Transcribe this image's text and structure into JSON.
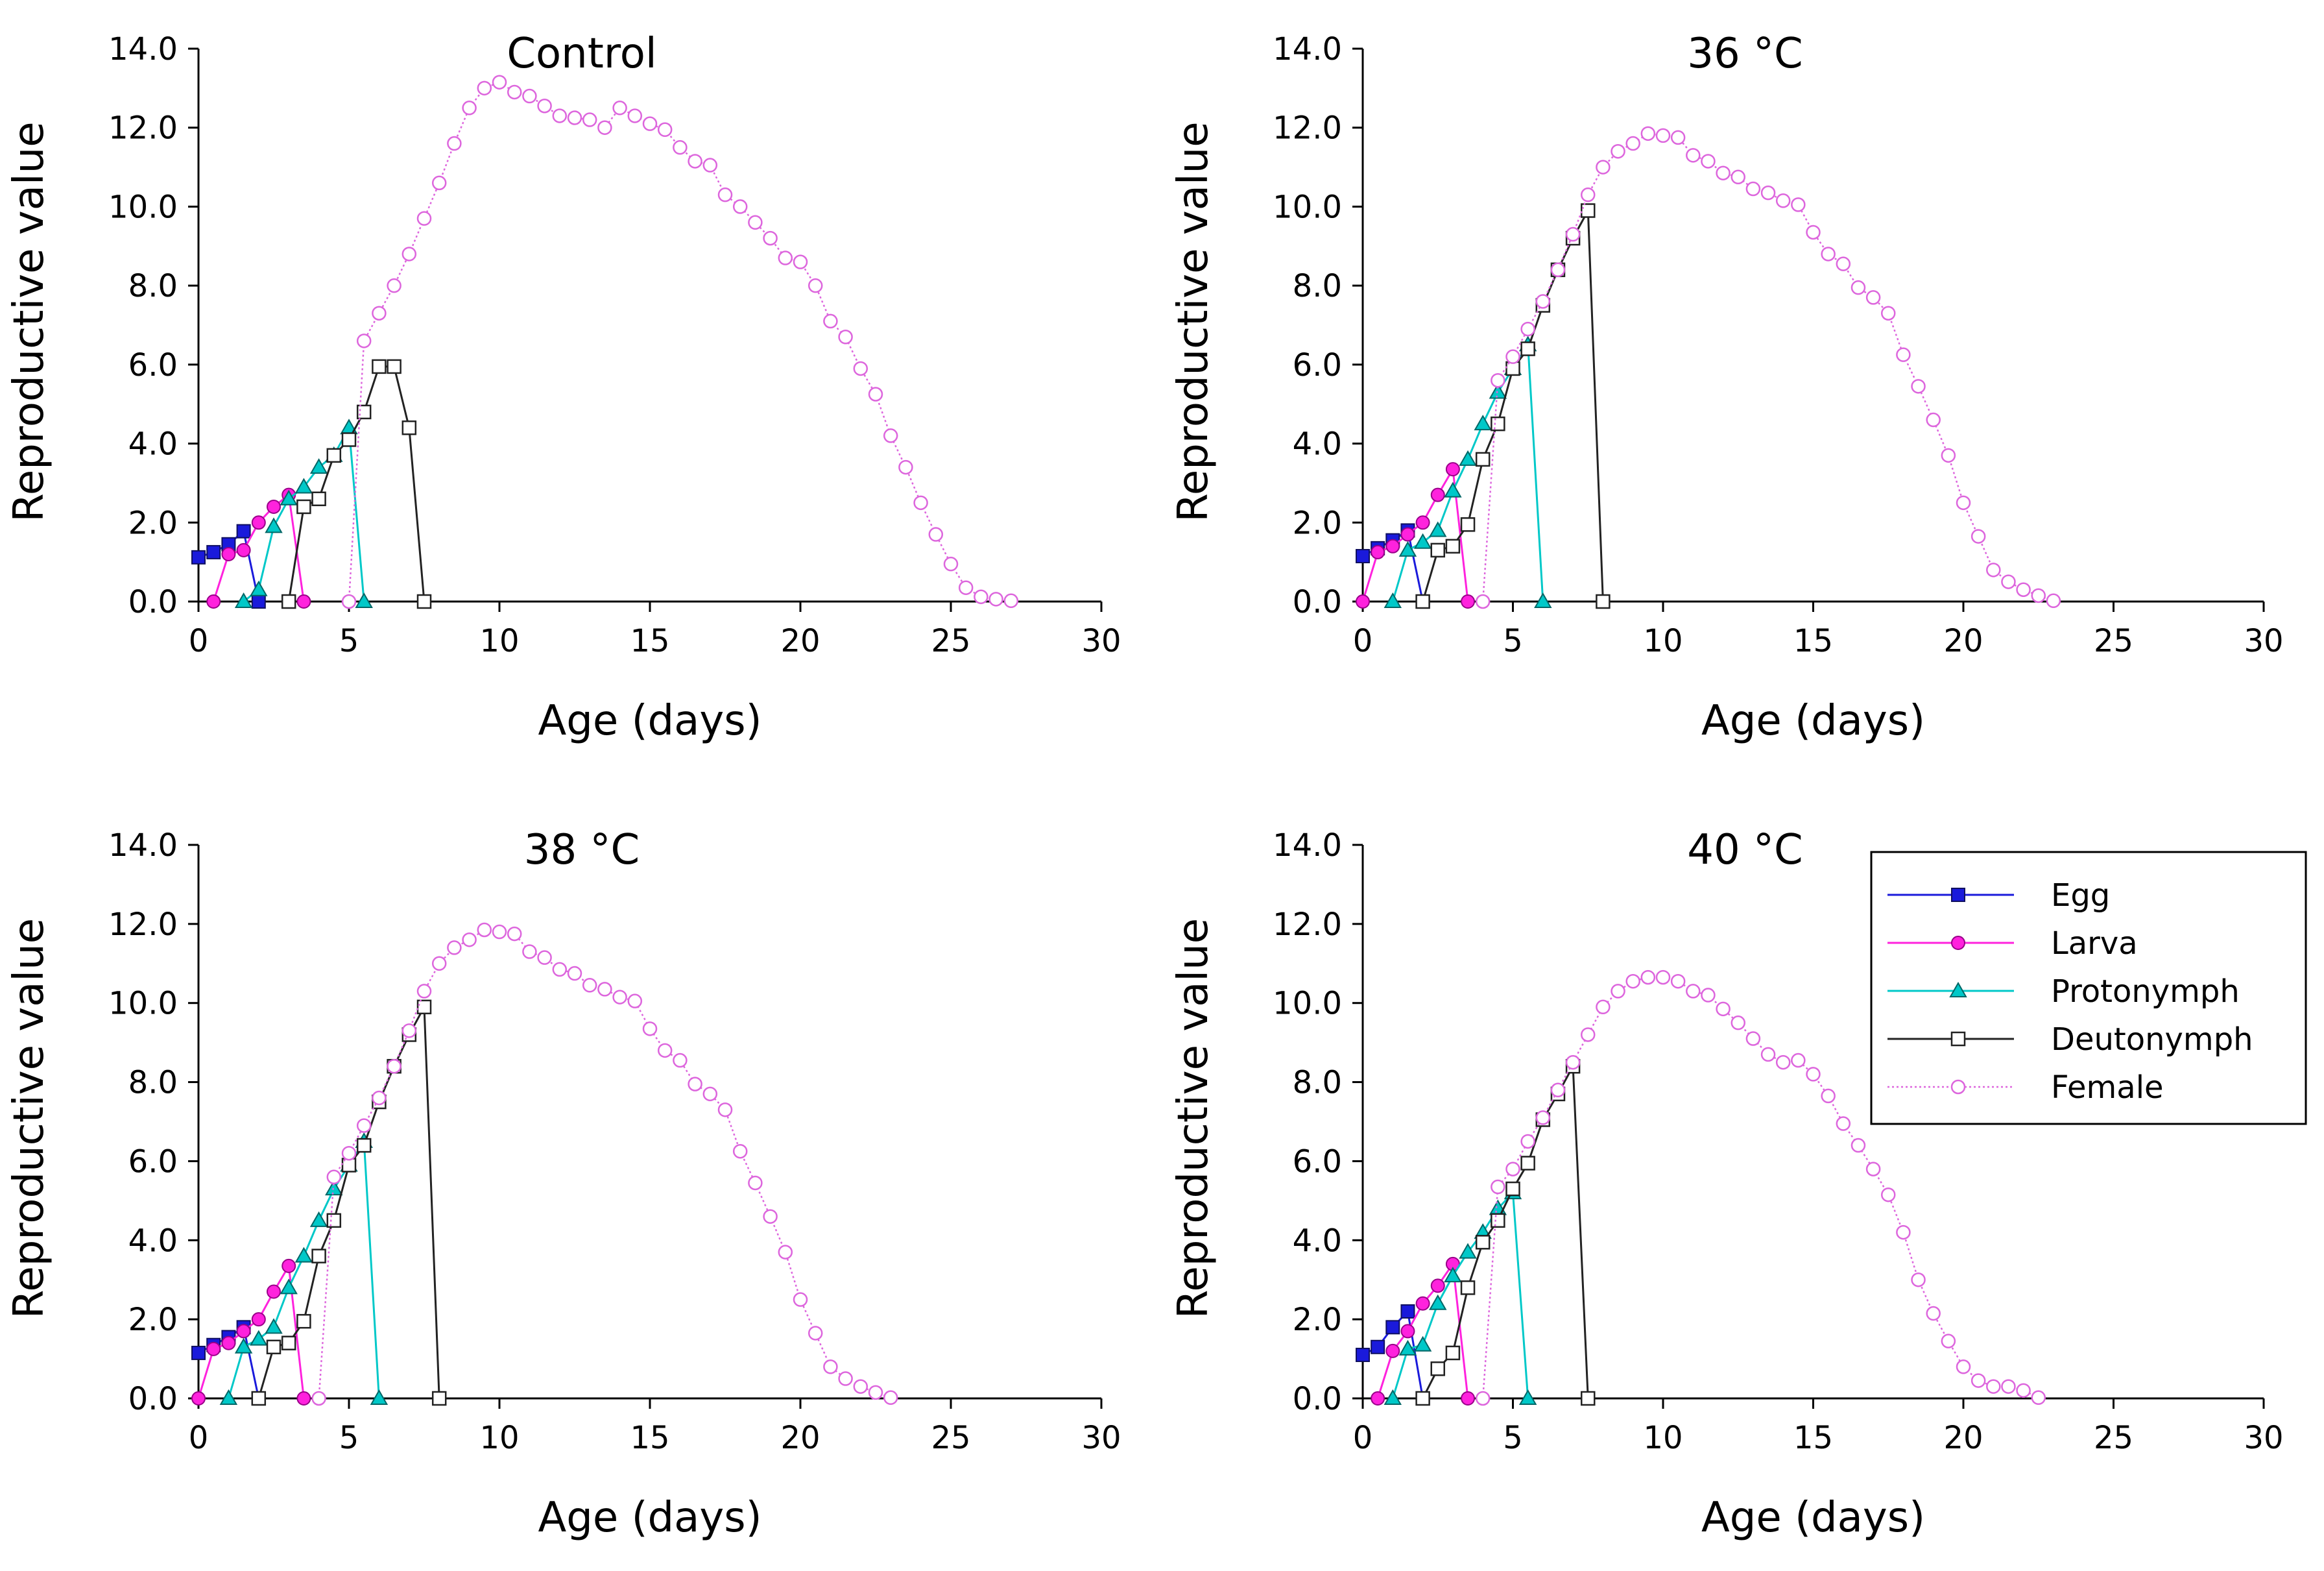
{
  "figure": {
    "colors": {
      "Egg": "#1a1adb",
      "Larva": "#ff22dd",
      "Protonymph": "#00c8c8",
      "Deutonymph": "#222222",
      "Female": "#dd66dd"
    },
    "legend": {
      "entries": [
        "Egg",
        "Larva",
        "Protonymph",
        "Deutonymph",
        "Female"
      ],
      "placement": "top-right of the 40 °C panel"
    }
  },
  "chart_data": [
    {
      "type": "line",
      "title": "Control",
      "xlabel": "Age (days)",
      "ylabel": "Reproductive value",
      "xlim": [
        0,
        30
      ],
      "ylim": [
        0,
        14
      ],
      "xticks": [
        "0",
        "5",
        "10",
        "15",
        "20",
        "25",
        "30"
      ],
      "yticks": [
        "0.0",
        "2.0",
        "4.0",
        "6.0",
        "8.0",
        "10.0",
        "12.0",
        "14.0"
      ],
      "series": [
        {
          "name": "Egg",
          "marker": "square-filled",
          "x": [
            0,
            0.5,
            1,
            1.5,
            2
          ],
          "y": [
            1.12,
            1.25,
            1.45,
            1.78,
            0
          ]
        },
        {
          "name": "Larva",
          "marker": "circle-filled",
          "x": [
            0.5,
            1,
            1.5,
            2,
            2.5,
            3,
            3.5
          ],
          "y": [
            0,
            1.2,
            1.3,
            2.0,
            2.4,
            2.7,
            0
          ]
        },
        {
          "name": "Protonymph",
          "marker": "triangle-filled",
          "x": [
            1.5,
            2,
            2.5,
            3,
            3.5,
            4,
            4.5,
            5,
            5.5
          ],
          "y": [
            0,
            0.3,
            1.9,
            2.6,
            2.9,
            3.4,
            3.7,
            4.4,
            0
          ]
        },
        {
          "name": "Deutonymph",
          "marker": "square-open",
          "x": [
            3,
            3.5,
            4,
            4.5,
            5,
            5.5,
            6,
            6.5,
            7,
            7.5
          ],
          "y": [
            0,
            2.4,
            2.6,
            3.7,
            4.1,
            4.8,
            5.95,
            5.95,
            4.4,
            0
          ]
        },
        {
          "name": "Female",
          "marker": "circle-open",
          "x": [
            5,
            5.5,
            6,
            6.5,
            7,
            7.5,
            8,
            8.5,
            9,
            9.5,
            10,
            10.5,
            11,
            11.5,
            12,
            12.5,
            13,
            13.5,
            14,
            14.5,
            15,
            15.5,
            16,
            16.5,
            17,
            17.5,
            18,
            18.5,
            19,
            19.5,
            20,
            20.5,
            21,
            21.5,
            22,
            22.5,
            23,
            23.5,
            24,
            24.5,
            25,
            25.5,
            26,
            26.5,
            27
          ],
          "y": [
            0,
            6.6,
            7.3,
            8.0,
            8.8,
            9.7,
            10.6,
            11.6,
            12.5,
            13.0,
            13.15,
            12.9,
            12.8,
            12.55,
            12.3,
            12.25,
            12.2,
            12.0,
            12.5,
            12.3,
            12.1,
            11.95,
            11.5,
            11.15,
            11.05,
            10.3,
            10.0,
            9.6,
            9.2,
            8.7,
            8.6,
            8.0,
            7.1,
            6.7,
            5.9,
            5.25,
            4.2,
            3.4,
            2.5,
            1.7,
            0.95,
            0.35,
            0.12,
            0.06,
            0.02
          ]
        }
      ]
    },
    {
      "type": "line",
      "title": "36 °C",
      "xlabel": "Age (days)",
      "ylabel": "Reproductive value",
      "xlim": [
        0,
        30
      ],
      "ylim": [
        0,
        14
      ],
      "xticks": [
        "0",
        "5",
        "10",
        "15",
        "20",
        "25",
        "30"
      ],
      "yticks": [
        "0.0",
        "2.0",
        "4.0",
        "6.0",
        "8.0",
        "10.0",
        "12.0",
        "14.0"
      ],
      "series": [
        {
          "name": "Egg",
          "marker": "square-filled",
          "x": [
            0,
            0.5,
            1,
            1.5,
            2
          ],
          "y": [
            1.15,
            1.35,
            1.55,
            1.8,
            0
          ]
        },
        {
          "name": "Larva",
          "marker": "circle-filled",
          "x": [
            0,
            0.5,
            1,
            1.5,
            2,
            2.5,
            3,
            3.5
          ],
          "y": [
            0,
            1.25,
            1.4,
            1.7,
            2.0,
            2.7,
            3.35,
            0
          ]
        },
        {
          "name": "Protonymph",
          "marker": "triangle-filled",
          "x": [
            1,
            1.5,
            2,
            2.5,
            3,
            3.5,
            4,
            4.5,
            5,
            5.5,
            6
          ],
          "y": [
            0,
            1.3,
            1.5,
            1.8,
            2.8,
            3.6,
            4.5,
            5.3,
            5.9,
            6.5,
            0
          ]
        },
        {
          "name": "Deutonymph",
          "marker": "square-open",
          "x": [
            2,
            2.5,
            3,
            3.5,
            4,
            4.5,
            5,
            5.5,
            6,
            6.5,
            7,
            7.5,
            8
          ],
          "y": [
            0,
            1.3,
            1.4,
            1.95,
            3.6,
            4.5,
            5.9,
            6.4,
            7.5,
            8.4,
            9.2,
            9.9,
            0
          ]
        },
        {
          "name": "Female",
          "marker": "circle-open",
          "x": [
            4,
            4.5,
            5,
            5.5,
            6,
            6.5,
            7,
            7.5,
            8,
            8.5,
            9,
            9.5,
            10,
            10.5,
            11,
            11.5,
            12,
            12.5,
            13,
            13.5,
            14,
            14.5,
            15,
            15.5,
            16,
            16.5,
            17,
            17.5,
            18,
            18.5,
            19,
            19.5,
            20,
            20.5,
            21,
            21.5,
            22,
            22.5,
            23
          ],
          "y": [
            0,
            5.6,
            6.2,
            6.9,
            7.6,
            8.4,
            9.3,
            10.3,
            11.0,
            11.4,
            11.6,
            11.85,
            11.8,
            11.75,
            11.3,
            11.15,
            10.85,
            10.75,
            10.45,
            10.35,
            10.15,
            10.05,
            9.35,
            8.8,
            8.55,
            7.95,
            7.7,
            7.3,
            6.25,
            5.45,
            4.6,
            3.7,
            2.5,
            1.65,
            0.8,
            0.5,
            0.3,
            0.15,
            0.02
          ]
        }
      ]
    },
    {
      "type": "line",
      "title": "38 °C",
      "xlabel": "Age (days)",
      "ylabel": "Reproductive value",
      "xlim": [
        0,
        30
      ],
      "ylim": [
        0,
        14
      ],
      "xticks": [
        "0",
        "5",
        "10",
        "15",
        "20",
        "25",
        "30"
      ],
      "yticks": [
        "0.0",
        "2.0",
        "4.0",
        "6.0",
        "8.0",
        "10.0",
        "12.0",
        "14.0"
      ],
      "series": [
        {
          "name": "Egg",
          "marker": "square-filled",
          "x": [
            0,
            0.5,
            1,
            1.5,
            2
          ],
          "y": [
            1.15,
            1.35,
            1.55,
            1.8,
            0
          ]
        },
        {
          "name": "Larva",
          "marker": "circle-filled",
          "x": [
            0,
            0.5,
            1,
            1.5,
            2,
            2.5,
            3,
            3.5
          ],
          "y": [
            0,
            1.25,
            1.4,
            1.7,
            2.0,
            2.7,
            3.35,
            0
          ]
        },
        {
          "name": "Protonymph",
          "marker": "triangle-filled",
          "x": [
            1,
            1.5,
            2,
            2.5,
            3,
            3.5,
            4,
            4.5,
            5,
            5.5,
            6
          ],
          "y": [
            0,
            1.3,
            1.5,
            1.8,
            2.8,
            3.6,
            4.5,
            5.3,
            5.9,
            6.5,
            0
          ]
        },
        {
          "name": "Deutonymph",
          "marker": "square-open",
          "x": [
            2,
            2.5,
            3,
            3.5,
            4,
            4.5,
            5,
            5.5,
            6,
            6.5,
            7,
            7.5,
            8
          ],
          "y": [
            0,
            1.3,
            1.4,
            1.95,
            3.6,
            4.5,
            5.9,
            6.4,
            7.5,
            8.4,
            9.2,
            9.9,
            0
          ]
        },
        {
          "name": "Female",
          "marker": "circle-open",
          "x": [
            4,
            4.5,
            5,
            5.5,
            6,
            6.5,
            7,
            7.5,
            8,
            8.5,
            9,
            9.5,
            10,
            10.5,
            11,
            11.5,
            12,
            12.5,
            13,
            13.5,
            14,
            14.5,
            15,
            15.5,
            16,
            16.5,
            17,
            17.5,
            18,
            18.5,
            19,
            19.5,
            20,
            20.5,
            21,
            21.5,
            22,
            22.5,
            23
          ],
          "y": [
            0,
            5.6,
            6.2,
            6.9,
            7.6,
            8.4,
            9.3,
            10.3,
            11.0,
            11.4,
            11.6,
            11.85,
            11.8,
            11.75,
            11.3,
            11.15,
            10.85,
            10.75,
            10.45,
            10.35,
            10.15,
            10.05,
            9.35,
            8.8,
            8.55,
            7.95,
            7.7,
            7.3,
            6.25,
            5.45,
            4.6,
            3.7,
            2.5,
            1.65,
            0.8,
            0.5,
            0.3,
            0.15,
            0.02
          ]
        }
      ]
    },
    {
      "type": "line",
      "title": "40 °C",
      "xlabel": "Age (days)",
      "ylabel": "Reproductive value",
      "xlim": [
        0,
        30
      ],
      "ylim": [
        0,
        14
      ],
      "xticks": [
        "0",
        "5",
        "10",
        "15",
        "20",
        "25",
        "30"
      ],
      "yticks": [
        "0.0",
        "2.0",
        "4.0",
        "6.0",
        "8.0",
        "10.0",
        "12.0",
        "14.0"
      ],
      "series": [
        {
          "name": "Egg",
          "marker": "square-filled",
          "x": [
            0,
            0.5,
            1,
            1.5,
            2
          ],
          "y": [
            1.1,
            1.3,
            1.8,
            2.2,
            0
          ]
        },
        {
          "name": "Larva",
          "marker": "circle-filled",
          "x": [
            0.5,
            1,
            1.5,
            2,
            2.5,
            3,
            3.5
          ],
          "y": [
            0,
            1.2,
            1.7,
            2.4,
            2.85,
            3.4,
            0
          ]
        },
        {
          "name": "Protonymph",
          "marker": "triangle-filled",
          "x": [
            1,
            1.5,
            2,
            2.5,
            3,
            3.5,
            4,
            4.5,
            5,
            5.5
          ],
          "y": [
            0,
            1.25,
            1.35,
            2.4,
            3.1,
            3.7,
            4.2,
            4.8,
            5.2,
            0
          ]
        },
        {
          "name": "Deutonymph",
          "marker": "square-open",
          "x": [
            2,
            2.5,
            3,
            3.5,
            4,
            4.5,
            5,
            5.5,
            6,
            6.5,
            7,
            7.5
          ],
          "y": [
            0,
            0.75,
            1.15,
            2.8,
            3.95,
            4.5,
            5.3,
            5.95,
            7.05,
            7.7,
            8.4,
            0
          ]
        },
        {
          "name": "Female",
          "marker": "circle-open",
          "x": [
            4,
            4.5,
            5,
            5.5,
            6,
            6.5,
            7,
            7.5,
            8,
            8.5,
            9,
            9.5,
            10,
            10.5,
            11,
            11.5,
            12,
            12.5,
            13,
            13.5,
            14,
            14.5,
            15,
            15.5,
            16,
            16.5,
            17,
            17.5,
            18,
            18.5,
            19,
            19.5,
            20,
            20.5,
            21,
            21.5,
            22,
            22.5
          ],
          "y": [
            0,
            5.35,
            5.8,
            6.5,
            7.1,
            7.8,
            8.5,
            9.2,
            9.9,
            10.3,
            10.55,
            10.65,
            10.65,
            10.55,
            10.3,
            10.2,
            9.85,
            9.5,
            9.1,
            8.7,
            8.5,
            8.55,
            8.2,
            7.65,
            6.95,
            6.4,
            5.8,
            5.15,
            4.2,
            3.0,
            2.15,
            1.45,
            0.8,
            0.45,
            0.3,
            0.3,
            0.2,
            0.02
          ]
        }
      ]
    }
  ]
}
